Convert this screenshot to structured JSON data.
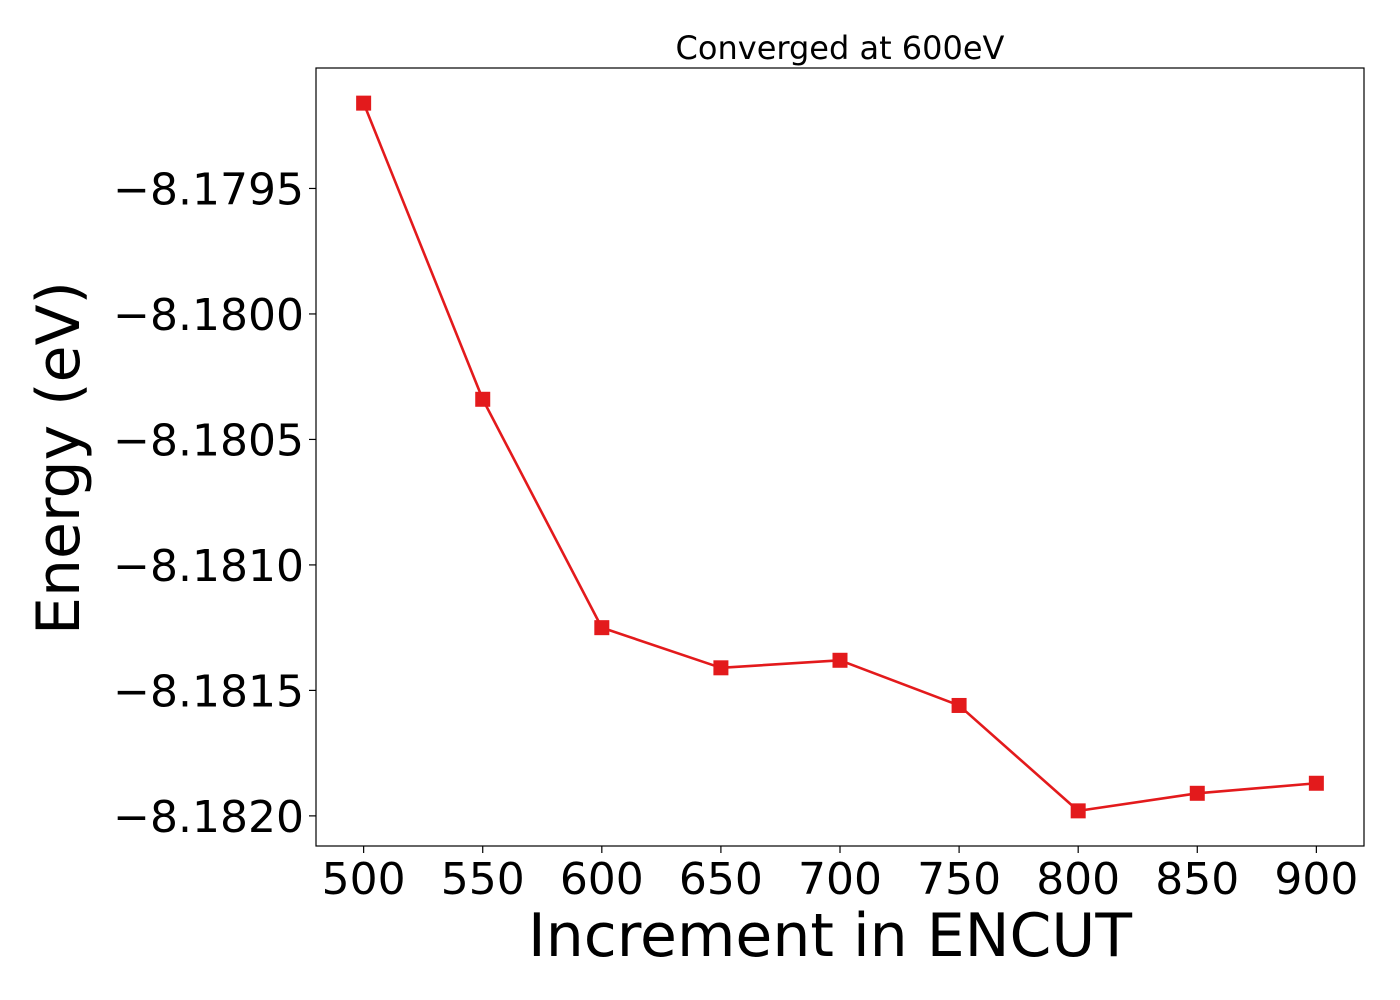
{
  "chart_data": {
    "type": "line",
    "title": "Converged at 600eV",
    "xlabel": "Increment in ENCUT",
    "ylabel": "Energy (eV)",
    "x": [
      500,
      550,
      600,
      650,
      700,
      750,
      800,
      850,
      900
    ],
    "series": [
      {
        "values": [
          -8.17916,
          -8.18034,
          -8.18125,
          -8.18141,
          -8.18138,
          -8.18156,
          -8.18198,
          -8.18191,
          -8.18187
        ],
        "color": "#e31a1c",
        "marker": "square"
      }
    ],
    "xticks": [
      500,
      550,
      600,
      650,
      700,
      750,
      800,
      850,
      900
    ],
    "xtick_labels": [
      "500",
      "550",
      "600",
      "650",
      "700",
      "750",
      "800",
      "850",
      "900"
    ],
    "yticks": [
      -8.1795,
      -8.18,
      -8.1805,
      -8.181,
      -8.1815,
      -8.182
    ],
    "ytick_labels": [
      "−8.1795",
      "−8.1800",
      "−8.1805",
      "−8.1810",
      "−8.1815",
      "−8.1820"
    ],
    "xlim": [
      480,
      920
    ],
    "ylim": [
      -8.18212,
      -8.17902
    ],
    "grid": false,
    "legend": false
  }
}
